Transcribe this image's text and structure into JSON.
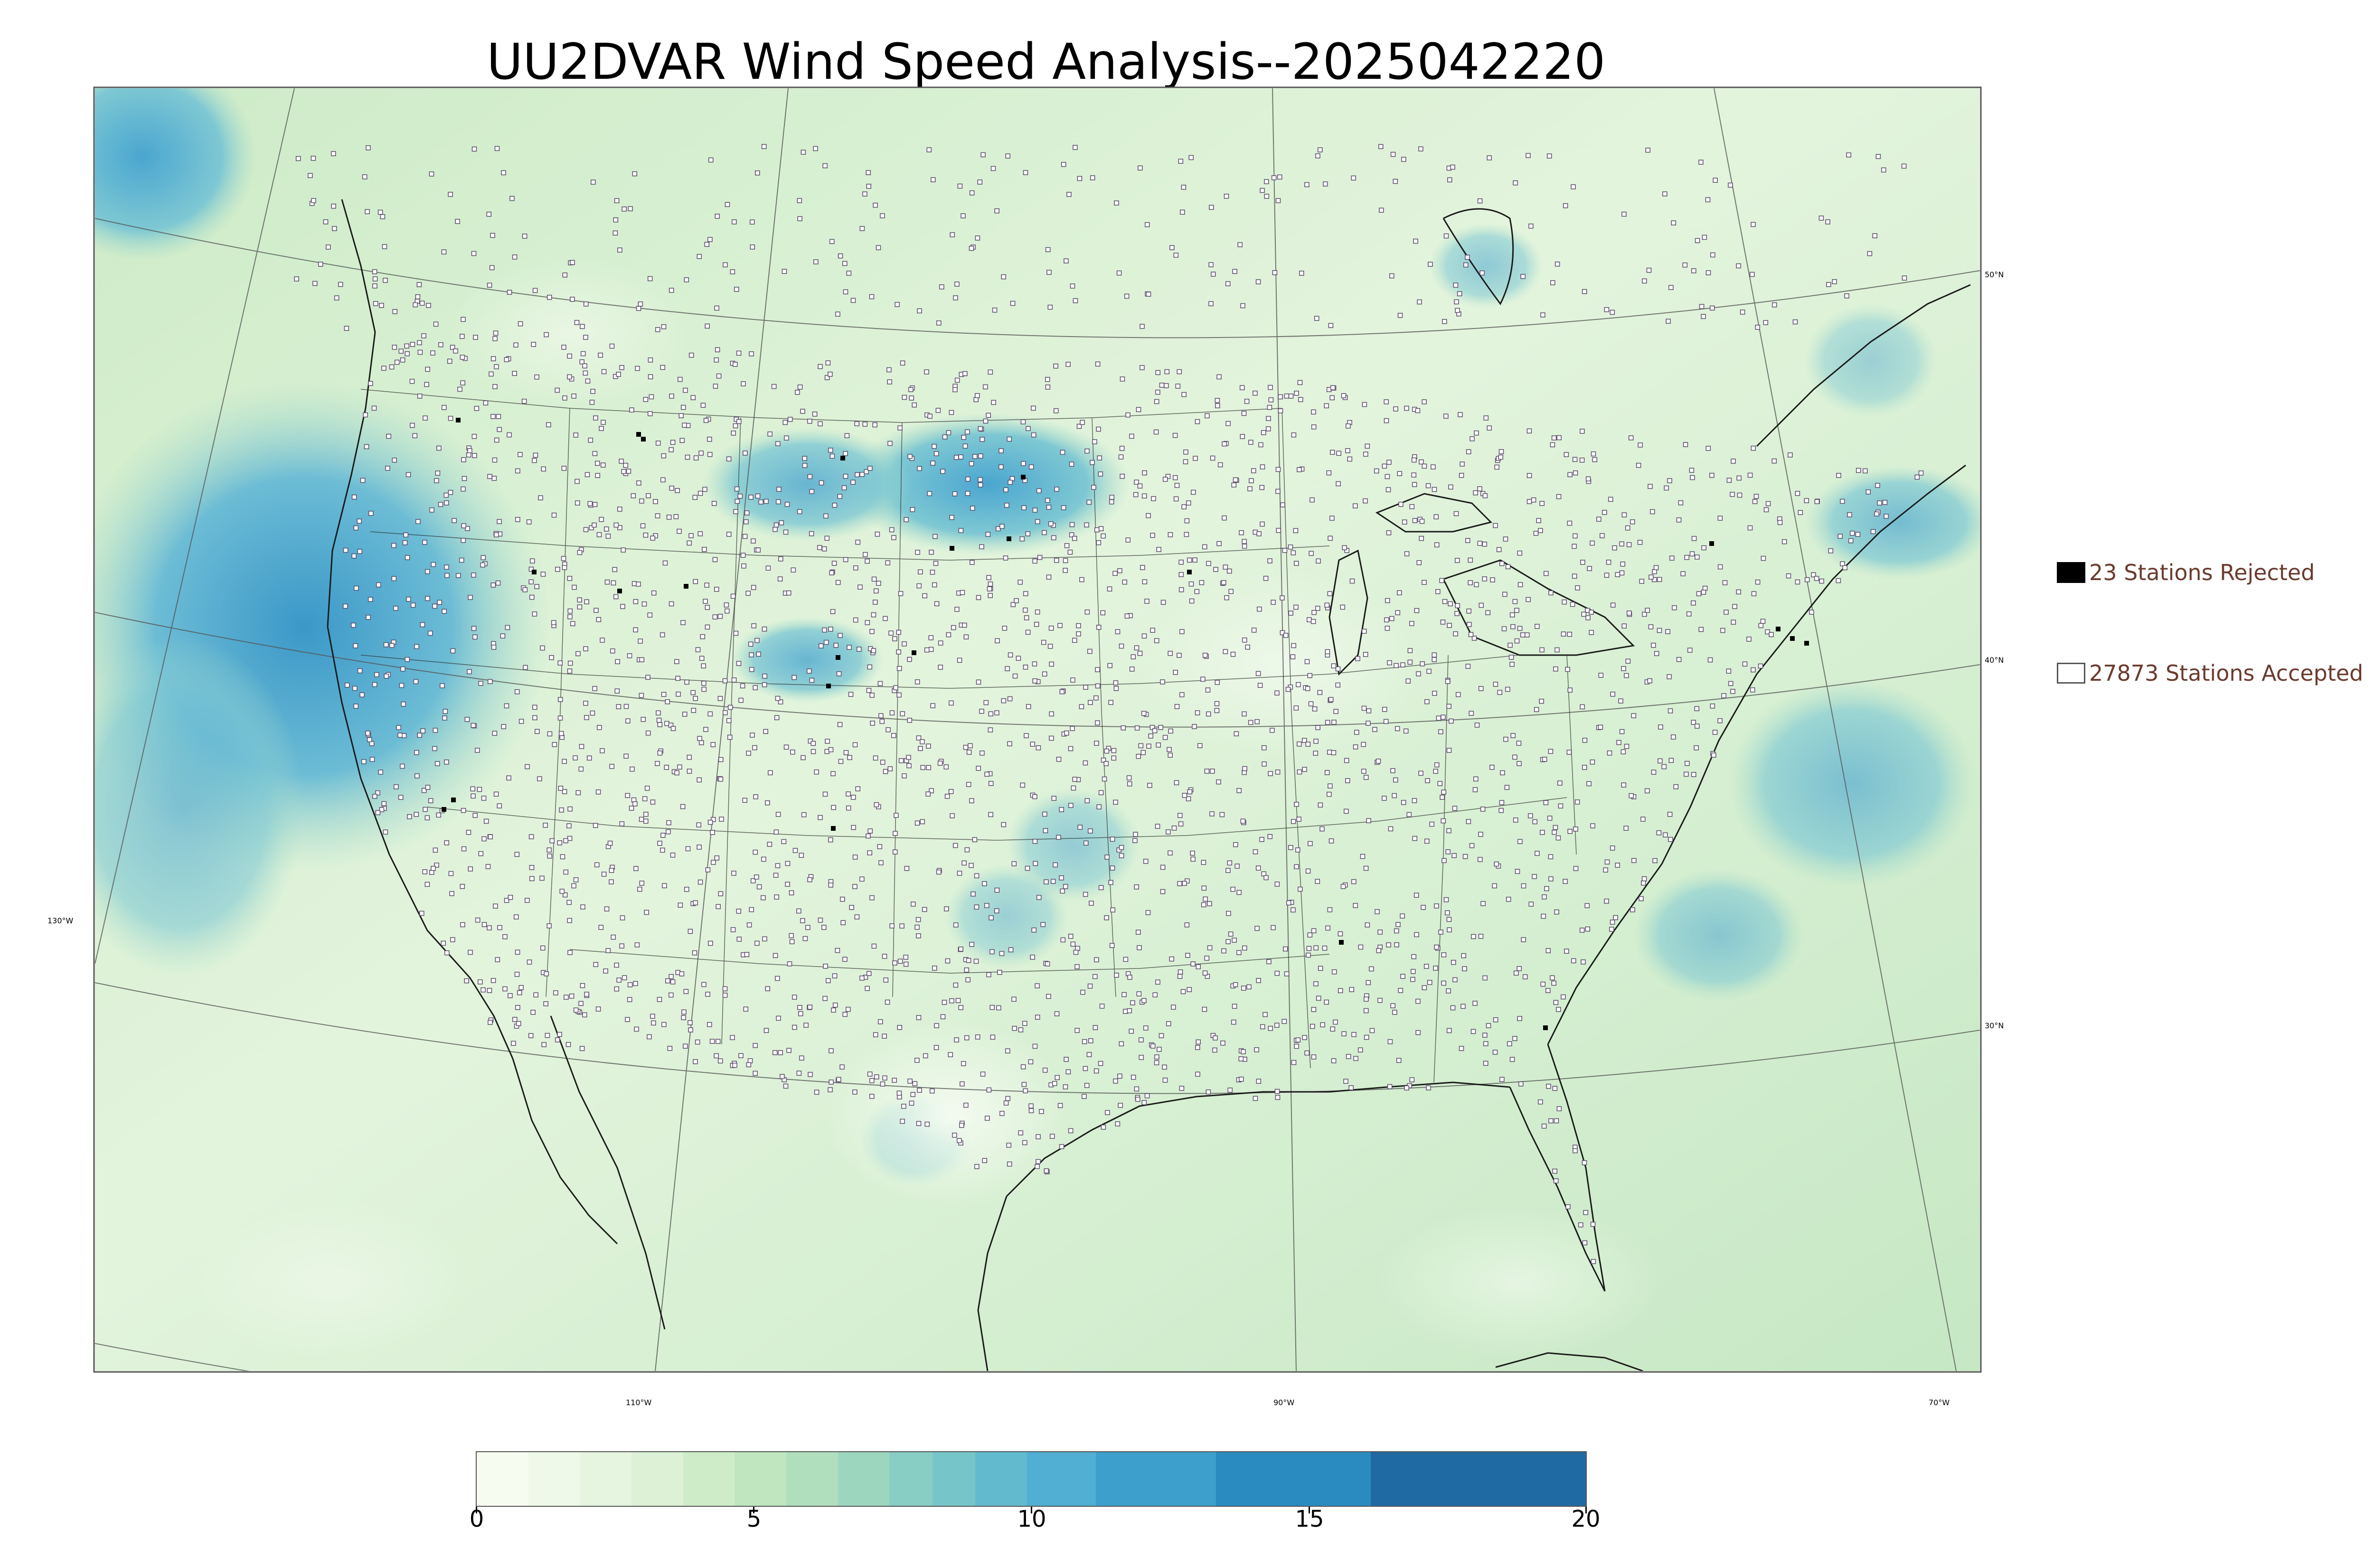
{
  "title": "UU2DVAR Wind Speed Analysis--2025042220",
  "graticule_labels": {
    "lat_50": "50°N",
    "lat_40": "40°N",
    "lat_30": "30°N",
    "lon_130": "130°W",
    "lon_110": "110°W",
    "lon_90": "90°W",
    "lon_70": "70°W"
  },
  "legend": {
    "rejected": {
      "label": "23 Stations Rejected",
      "count": 23,
      "color": "#000000"
    },
    "accepted": {
      "label": "27873 Stations Accepted",
      "count": 27873,
      "color": "#ffffff"
    }
  },
  "colorbar": {
    "min": 0,
    "max": 20,
    "ticks": [
      "0",
      "5",
      "10",
      "15",
      "20"
    ],
    "colormap": "GnBu (light green to dark blue)"
  },
  "colors": {
    "land_field": "#d9f0d3",
    "ocean_low": "#c7e9c0",
    "strong_wind": "#4eb3d3",
    "station_marker_edge": "#5a4a6a",
    "legend_text": "#6b3b2e"
  },
  "map": {
    "projection": "Lambert Conformal",
    "region": "CONUS"
  }
}
